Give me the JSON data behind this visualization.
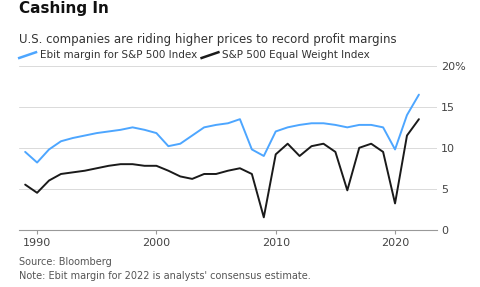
{
  "title": "Cashing In",
  "subtitle": "U.S. companies are riding higher prices to record profit margins",
  "legend1": "Ebit margin for S&P 500 Index",
  "legend2": "S&P 500 Equal Weight Index",
  "source": "Source: Bloomberg",
  "note": "Note: Ebit margin for 2022 is analysts' consensus estimate.",
  "sp500_years": [
    1989,
    1990,
    1991,
    1992,
    1993,
    1994,
    1995,
    1996,
    1997,
    1998,
    1999,
    2000,
    2001,
    2002,
    2003,
    2004,
    2005,
    2006,
    2007,
    2008,
    2009,
    2010,
    2011,
    2012,
    2013,
    2014,
    2015,
    2016,
    2017,
    2018,
    2019,
    2020,
    2021,
    2022
  ],
  "sp500_values": [
    9.5,
    8.2,
    9.8,
    10.8,
    11.2,
    11.5,
    11.8,
    12.0,
    12.2,
    12.5,
    12.2,
    11.8,
    10.2,
    10.5,
    11.5,
    12.5,
    12.8,
    13.0,
    13.5,
    9.8,
    9.0,
    12.0,
    12.5,
    12.8,
    13.0,
    13.0,
    12.8,
    12.5,
    12.8,
    12.8,
    12.5,
    9.8,
    14.0,
    16.5
  ],
  "equal_years": [
    1989,
    1990,
    1991,
    1992,
    1993,
    1994,
    1995,
    1996,
    1997,
    1998,
    1999,
    2000,
    2001,
    2002,
    2003,
    2004,
    2005,
    2006,
    2007,
    2008,
    2009,
    2010,
    2011,
    2012,
    2013,
    2014,
    2015,
    2016,
    2017,
    2018,
    2019,
    2020,
    2021,
    2022
  ],
  "equal_values": [
    5.5,
    4.5,
    6.0,
    6.8,
    7.0,
    7.2,
    7.5,
    7.8,
    8.0,
    8.0,
    7.8,
    7.8,
    7.2,
    6.5,
    6.2,
    6.8,
    6.8,
    7.2,
    7.5,
    6.8,
    1.5,
    9.2,
    10.5,
    9.0,
    10.2,
    10.5,
    9.5,
    4.8,
    10.0,
    10.5,
    9.5,
    3.2,
    11.5,
    13.5
  ],
  "sp500_color": "#4da6ff",
  "equal_color": "#1a1a1a",
  "background_color": "#ffffff",
  "ylim": [
    0,
    20
  ],
  "yticks": [
    0,
    5,
    10,
    15,
    20
  ],
  "ytick_labels": [
    "0",
    "5",
    "10",
    "15",
    "20%"
  ],
  "xlim": [
    1988.5,
    2023.5
  ],
  "xticks": [
    1990,
    2000,
    2010,
    2020
  ],
  "title_fontsize": 11,
  "subtitle_fontsize": 8.5,
  "legend_fontsize": 7.5,
  "axis_fontsize": 8,
  "note_fontsize": 7
}
